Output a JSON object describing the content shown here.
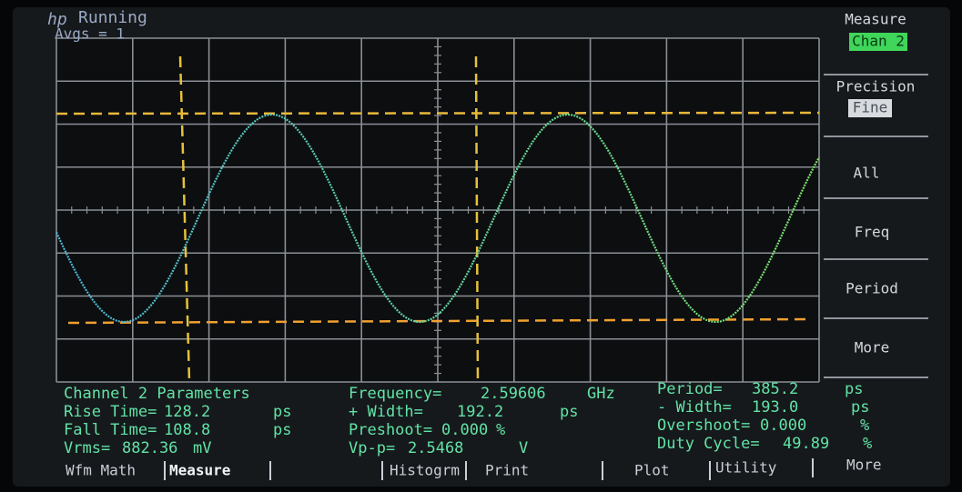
{
  "header": {
    "logo": "hp",
    "status": "Running",
    "averages": "Avgs = 1"
  },
  "softkeys": [
    {
      "label": "Measure",
      "value": "Chan 2"
    },
    {
      "label": "Precision",
      "value": "Fine"
    },
    {
      "label": "All"
    },
    {
      "label": "Freq"
    },
    {
      "label": "Period"
    },
    {
      "label": "More"
    }
  ],
  "measurements": {
    "title": "Channel 2 Parameters",
    "items": [
      {
        "label": "Rise Time=",
        "value": "128.2",
        "unit": "ps"
      },
      {
        "label": "Fall Time=",
        "value": "108.8",
        "unit": "ps"
      },
      {
        "label": "Vrms=",
        "value": "882.36",
        "unit": "mV"
      },
      {
        "label": "Frequency=",
        "value": "2.59606",
        "unit": "GHz"
      },
      {
        "label": "+ Width=",
        "value": "192.2",
        "unit": "ps"
      },
      {
        "label": "Preshoot=",
        "value": "0.000",
        "unit": "%"
      },
      {
        "label": "Vp-p=",
        "value": "2.5468",
        "unit": "V"
      },
      {
        "label": "Period=",
        "value": "385.2",
        "unit": "ps"
      },
      {
        "label": "- Width=",
        "value": "193.0",
        "unit": "ps"
      },
      {
        "label": "Overshoot=",
        "value": "0.000",
        "unit": "%"
      },
      {
        "label": "Duty Cycle=",
        "value": "49.89",
        "unit": "%"
      }
    ]
  },
  "menu": [
    "Wfm Math",
    "Measure",
    "Histogrm",
    "Print",
    "Plot",
    "Utility",
    "More"
  ]
}
